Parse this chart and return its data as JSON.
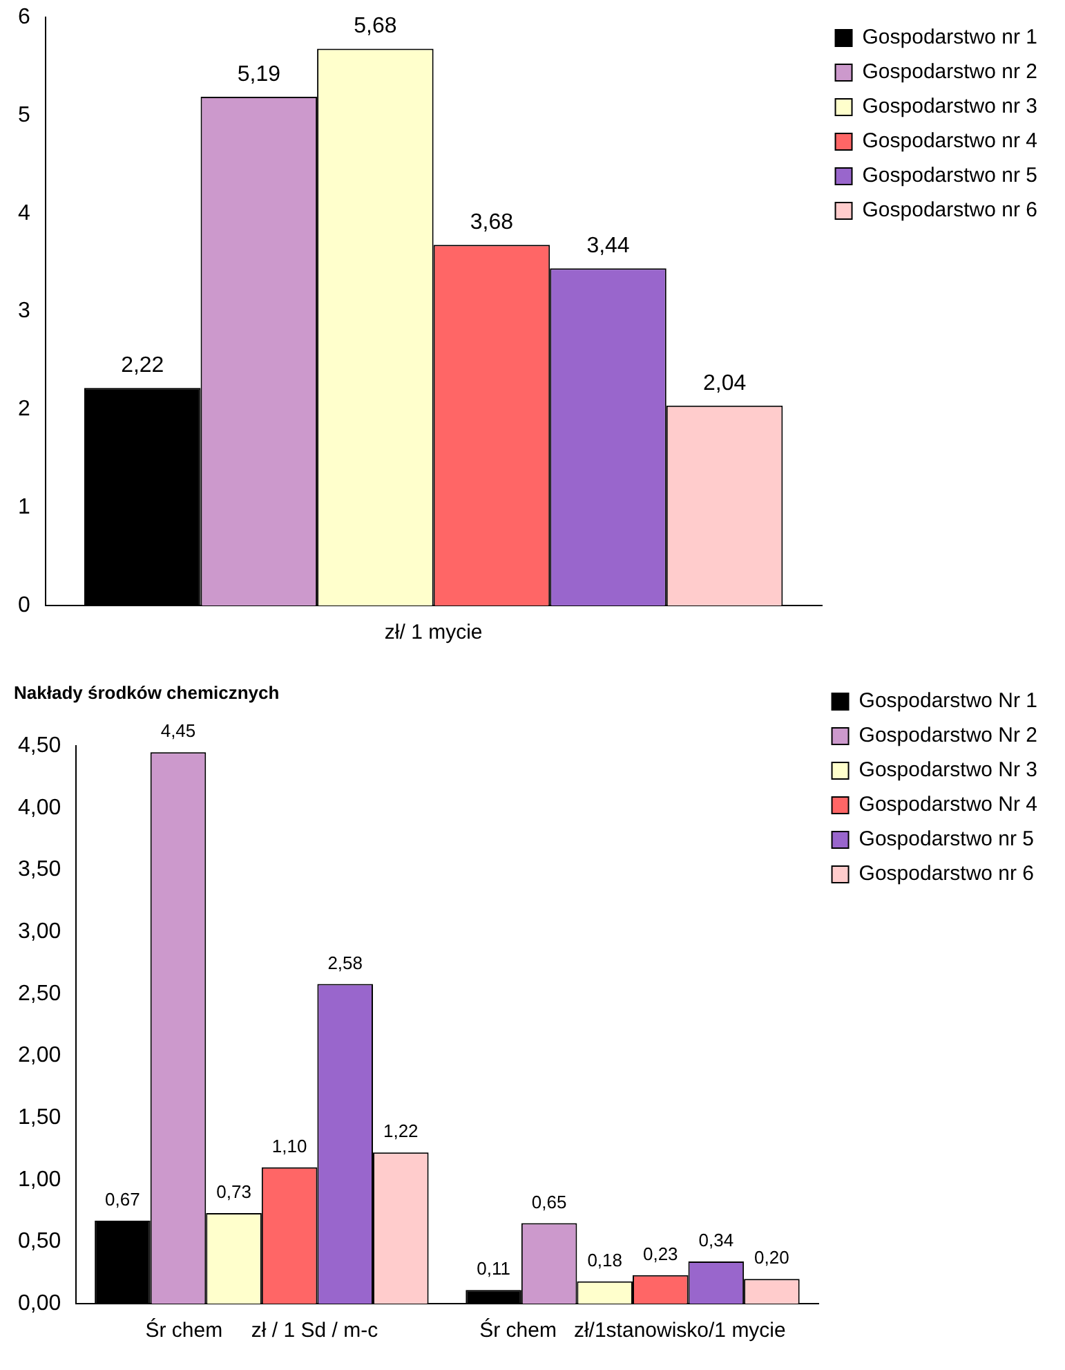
{
  "chart_data": [
    {
      "type": "bar",
      "categories": [
        "zł/ 1 mycie"
      ],
      "ylim": [
        0,
        6
      ],
      "yticks": [
        0,
        1,
        2,
        3,
        4,
        5,
        6
      ],
      "grid": false,
      "legend": "top right",
      "series": [
        {
          "name": "Gospodarstwo nr 1",
          "color": "#000000",
          "values": [
            2.22
          ],
          "value_labels": [
            "2,22"
          ]
        },
        {
          "name": "Gospodarstwo nr 2",
          "color": "#cc99cc",
          "values": [
            5.19
          ],
          "value_labels": [
            "5,19"
          ]
        },
        {
          "name": "Gospodarstwo nr 3",
          "color": "#ffffcc",
          "values": [
            5.68
          ],
          "value_labels": [
            "5,68"
          ]
        },
        {
          "name": "Gospodarstwo nr 4",
          "color": "#ff6666",
          "values": [
            3.68
          ],
          "value_labels": [
            "3,68"
          ]
        },
        {
          "name": "Gospodarstwo nr 5",
          "color": "#9966cc",
          "values": [
            3.44
          ],
          "value_labels": [
            "3,44"
          ]
        },
        {
          "name": "Gospodarstwo nr 6",
          "color": "#ffcccc",
          "values": [
            2.04
          ],
          "value_labels": [
            "2,04"
          ]
        }
      ]
    },
    {
      "type": "bar",
      "title": "Nakłady środków chemicznych",
      "categories": [
        "Śr chem     zł / 1 Sd / m-c",
        "Śr chem   zł/1stanowisko/1 mycie"
      ],
      "ylim": [
        0,
        4.5
      ],
      "yticks": [
        {
          "value": 0,
          "label": "0,00"
        },
        {
          "value": 0.5,
          "label": "0,50"
        },
        {
          "value": 1,
          "label": "1,00"
        },
        {
          "value": 1.5,
          "label": "1,50"
        },
        {
          "value": 2,
          "label": "2,00"
        },
        {
          "value": 2.5,
          "label": "2,50"
        },
        {
          "value": 3,
          "label": "3,00"
        },
        {
          "value": 3.5,
          "label": "3,50"
        },
        {
          "value": 4,
          "label": "4,00"
        },
        {
          "value": 4.5,
          "label": "4,50"
        }
      ],
      "grid": false,
      "legend": "top right",
      "series": [
        {
          "name": "Gospodarstwo Nr 1",
          "color": "#000000",
          "values": [
            0.67,
            0.11
          ],
          "value_labels": [
            "0,67",
            "0,11"
          ]
        },
        {
          "name": "Gospodarstwo Nr 2",
          "color": "#cc99cc",
          "values": [
            4.45,
            0.65
          ],
          "value_labels": [
            "4,45",
            "0,65"
          ]
        },
        {
          "name": "Gospodarstwo Nr 3",
          "color": "#ffffcc",
          "values": [
            0.73,
            0.18
          ],
          "value_labels": [
            "0,73",
            "0,18"
          ]
        },
        {
          "name": "Gospodarstwo Nr 4",
          "color": "#ff6666",
          "values": [
            1.1,
            0.23
          ],
          "value_labels": [
            "1,10",
            "0,23"
          ]
        },
        {
          "name": "Gospodarstwo nr 5",
          "color": "#9966cc",
          "values": [
            2.58,
            0.34
          ],
          "value_labels": [
            "2,58",
            "0,34"
          ]
        },
        {
          "name": "Gospodarstwo nr 6",
          "color": "#ffcccc",
          "values": [
            1.22,
            0.2
          ],
          "value_labels": [
            "1,22",
            "0,20"
          ]
        }
      ]
    }
  ]
}
